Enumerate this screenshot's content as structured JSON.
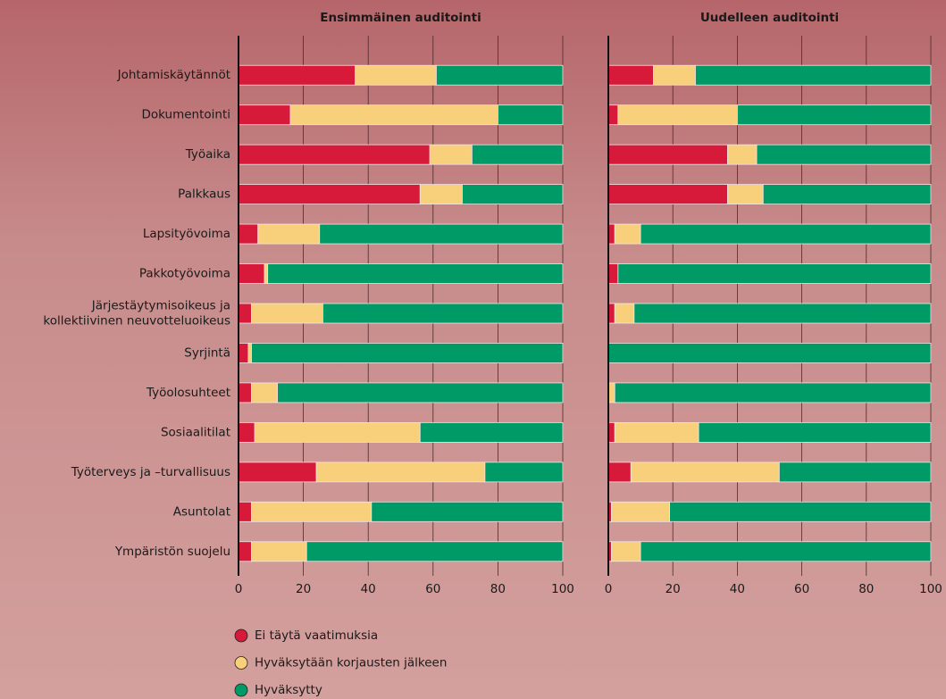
{
  "chart_data": {
    "type": "bar",
    "orientation": "horizontal",
    "stacked": true,
    "categories": [
      "Johtamiskäytännöt",
      "Dokumentointi",
      "Työaika",
      "Palkkaus",
      "Lapsityövoima",
      "Pakkotyövoima",
      "Järjestäytymisoikeus ja\nkollektiivinen neuvotteluoikeus",
      "Syrjintä",
      "Työolosuhteet",
      "Sosiaalitilat",
      "Työterveys ja –turvallisuus",
      "Asuntolat",
      "Ympäristön suojelu"
    ],
    "series": [
      {
        "name": "Ei täytä vaatimuksia",
        "color": "#d7193a"
      },
      {
        "name": "Hyväksytään korjausten jälkeen",
        "color": "#f8cf7a"
      },
      {
        "name": "Hyväksytty",
        "color": "#009a66"
      }
    ],
    "xlim": [
      0,
      100
    ],
    "xticks": [
      0,
      20,
      40,
      60,
      80,
      100
    ],
    "grid": true,
    "panels": [
      {
        "title": "Ensimmäinen auditointi",
        "series": [
          {
            "values": [
              36,
              16,
              59,
              56,
              6,
              8,
              4,
              3,
              4,
              5,
              24,
              4,
              4
            ]
          },
          {
            "values": [
              25,
              64,
              13,
              13,
              19,
              1,
              22,
              1,
              8,
              51,
              52,
              37,
              17
            ]
          },
          {
            "values": [
              39,
              20,
              28,
              31,
              75,
              91,
              74,
              96,
              88,
              44,
              24,
              59,
              79
            ]
          }
        ]
      },
      {
        "title": "Uudelleen auditointi",
        "series": [
          {
            "values": [
              14,
              3,
              37,
              37,
              2,
              3,
              2,
              0,
              0,
              2,
              7,
              1,
              1
            ]
          },
          {
            "values": [
              13,
              37,
              9,
              11,
              8,
              0,
              6,
              0,
              2,
              26,
              46,
              18,
              9
            ]
          },
          {
            "values": [
              73,
              60,
              54,
              52,
              90,
              97,
              92,
              100,
              98,
              72,
              47,
              81,
              90
            ]
          }
        ]
      }
    ]
  }
}
